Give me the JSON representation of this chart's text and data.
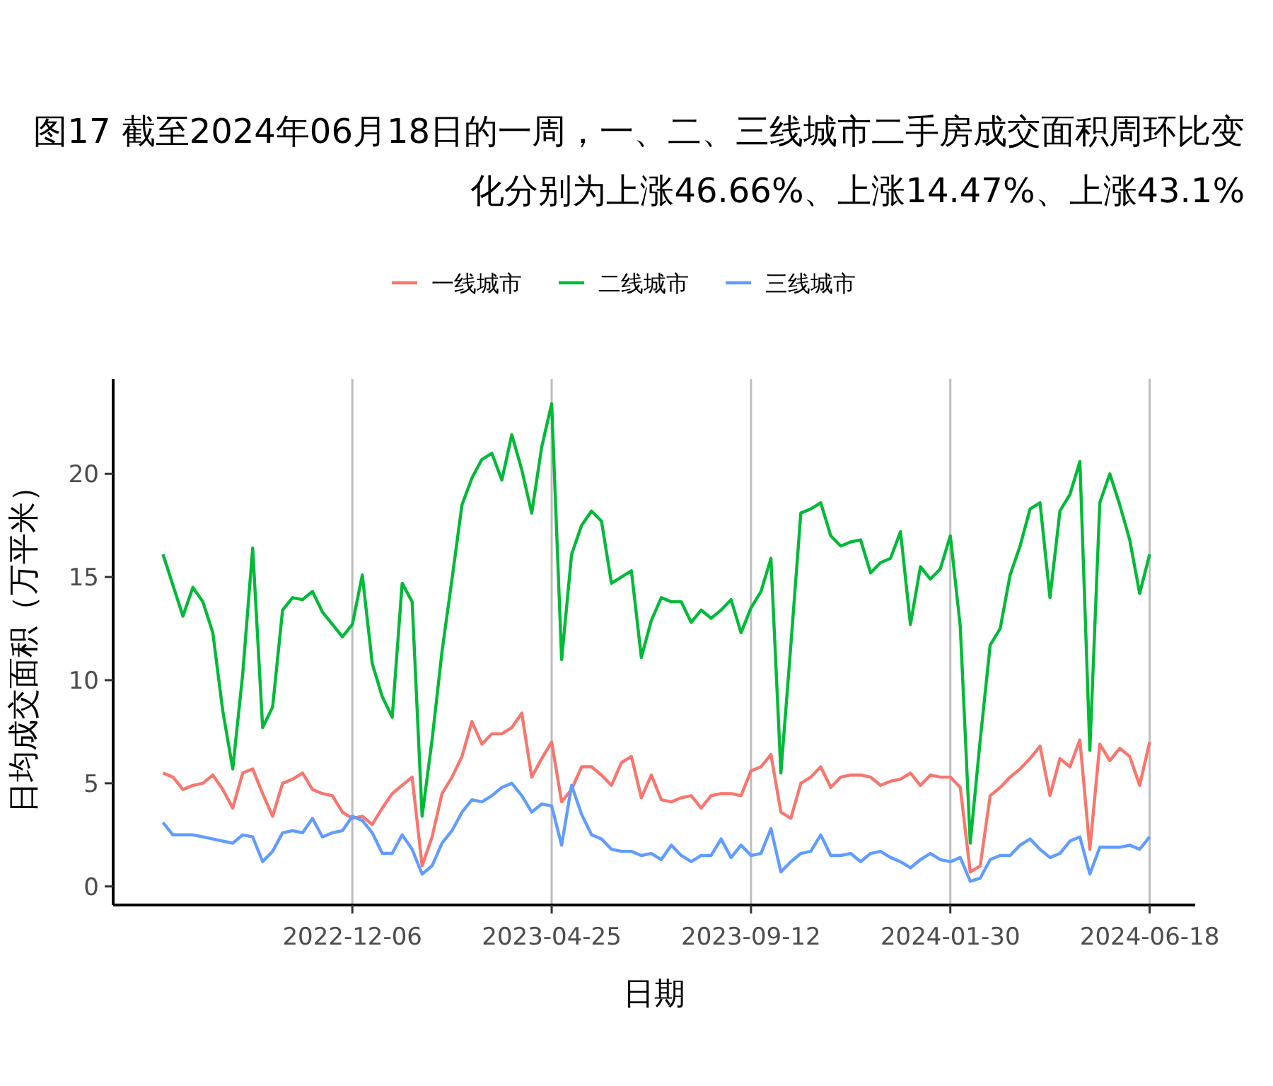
{
  "chart_data": {
    "type": "line",
    "title": "图17  截至2024年06月18日的一周，一、二、三线城市二手房成交面积周环比变化分别为上涨46.66%、上涨14.47%、上涨43.1%",
    "xlabel": "日期",
    "ylabel": "日均成交面积（万平米）",
    "legend": "top",
    "grid": "x",
    "xlim": [
      "2022-06-21",
      "2024-07-20"
    ],
    "xticks": [
      "2022-12-06",
      "2023-04-25",
      "2023-09-12",
      "2024-01-30",
      "2024-06-18"
    ],
    "ylim": [
      -0.9,
      24.6
    ],
    "yticks": [
      0,
      5,
      10,
      15,
      20
    ],
    "x": [
      "2022-07-26",
      "2022-08-02",
      "2022-08-09",
      "2022-08-16",
      "2022-08-23",
      "2022-08-30",
      "2022-09-06",
      "2022-09-13",
      "2022-09-20",
      "2022-09-27",
      "2022-10-04",
      "2022-10-11",
      "2022-10-18",
      "2022-10-25",
      "2022-11-01",
      "2022-11-08",
      "2022-11-15",
      "2022-11-22",
      "2022-11-29",
      "2022-12-06",
      "2022-12-13",
      "2022-12-20",
      "2022-12-27",
      "2023-01-03",
      "2023-01-10",
      "2023-01-17",
      "2023-01-24",
      "2023-01-31",
      "2023-02-07",
      "2023-02-14",
      "2023-02-21",
      "2023-02-28",
      "2023-03-07",
      "2023-03-14",
      "2023-03-21",
      "2023-03-28",
      "2023-04-04",
      "2023-04-11",
      "2023-04-18",
      "2023-04-25",
      "2023-05-02",
      "2023-05-09",
      "2023-05-16",
      "2023-05-23",
      "2023-05-30",
      "2023-06-06",
      "2023-06-13",
      "2023-06-20",
      "2023-06-27",
      "2023-07-04",
      "2023-07-11",
      "2023-07-18",
      "2023-07-25",
      "2023-08-01",
      "2023-08-08",
      "2023-08-15",
      "2023-08-22",
      "2023-08-29",
      "2023-09-05",
      "2023-09-12",
      "2023-09-19",
      "2023-09-26",
      "2023-10-03",
      "2023-10-10",
      "2023-10-17",
      "2023-10-24",
      "2023-10-31",
      "2023-11-07",
      "2023-11-14",
      "2023-11-21",
      "2023-11-28",
      "2023-12-05",
      "2023-12-12",
      "2023-12-19",
      "2023-12-26",
      "2024-01-02",
      "2024-01-09",
      "2024-01-16",
      "2024-01-23",
      "2024-01-30",
      "2024-02-06",
      "2024-02-13",
      "2024-02-20",
      "2024-02-27",
      "2024-03-05",
      "2024-03-12",
      "2024-03-19",
      "2024-03-26",
      "2024-04-02",
      "2024-04-09",
      "2024-04-16",
      "2024-04-23",
      "2024-04-30",
      "2024-05-07",
      "2024-05-14",
      "2024-05-21",
      "2024-05-28",
      "2024-06-04",
      "2024-06-11",
      "2024-06-18"
    ],
    "series": [
      {
        "name": "一线城市",
        "color": "#f8766d",
        "values": [
          5.5,
          5.3,
          4.7,
          4.9,
          5.0,
          5.4,
          4.7,
          3.8,
          5.5,
          5.7,
          4.5,
          3.4,
          5.0,
          5.2,
          5.5,
          4.7,
          4.5,
          4.4,
          3.6,
          3.3,
          3.4,
          3.0,
          3.8,
          4.5,
          4.9,
          5.3,
          1.0,
          2.4,
          4.5,
          5.3,
          6.3,
          8.0,
          6.9,
          7.4,
          7.4,
          7.7,
          8.4,
          5.3,
          6.2,
          7.0,
          4.1,
          4.7,
          5.8,
          5.8,
          5.4,
          4.9,
          6.0,
          6.3,
          4.3,
          5.4,
          4.2,
          4.1,
          4.3,
          4.4,
          3.8,
          4.4,
          4.5,
          4.5,
          4.4,
          5.6,
          5.8,
          6.4,
          3.6,
          3.3,
          5.0,
          5.3,
          5.8,
          4.8,
          5.3,
          5.4,
          5.4,
          5.3,
          4.9,
          5.1,
          5.2,
          5.5,
          4.9,
          5.4,
          5.3,
          5.3,
          4.8,
          0.7,
          1.0,
          4.4,
          4.8,
          5.3,
          5.7,
          6.2,
          6.8,
          4.4,
          6.2,
          5.8,
          7.1,
          1.8,
          6.9,
          6.1,
          6.7,
          6.3,
          4.9,
          7.0
        ]
      },
      {
        "name": "二线城市",
        "color": "#00ba38",
        "values": [
          16.1,
          14.6,
          13.1,
          14.5,
          13.8,
          12.3,
          8.5,
          5.7,
          10.3,
          16.4,
          7.7,
          8.7,
          13.4,
          14.0,
          13.9,
          14.3,
          13.3,
          12.7,
          12.1,
          12.7,
          15.1,
          10.8,
          9.2,
          8.2,
          14.7,
          13.8,
          3.4,
          7.1,
          11.4,
          14.9,
          18.5,
          19.8,
          20.7,
          21.0,
          19.7,
          21.9,
          20.2,
          18.1,
          21.3,
          23.4,
          11.0,
          16.1,
          17.5,
          18.2,
          17.7,
          14.7,
          15.0,
          15.3,
          11.1,
          12.9,
          14.0,
          13.8,
          13.8,
          12.8,
          13.4,
          13.0,
          13.4,
          13.9,
          12.3,
          13.5,
          14.3,
          15.9,
          5.5,
          11.7,
          18.1,
          18.3,
          18.6,
          17.0,
          16.5,
          16.7,
          16.8,
          15.2,
          15.7,
          15.9,
          17.2,
          12.7,
          15.5,
          14.9,
          15.4,
          17.0,
          12.6,
          2.1,
          7.1,
          11.7,
          12.5,
          15.1,
          16.5,
          18.3,
          18.6,
          14.0,
          18.2,
          19.0,
          20.6,
          6.6,
          18.6,
          20.0,
          18.5,
          16.8,
          14.2,
          16.1
        ]
      },
      {
        "name": "三线城市",
        "color": "#619cff",
        "values": [
          3.1,
          2.5,
          2.5,
          2.5,
          2.4,
          2.3,
          2.2,
          2.1,
          2.5,
          2.4,
          1.2,
          1.7,
          2.6,
          2.7,
          2.6,
          3.3,
          2.4,
          2.6,
          2.7,
          3.4,
          3.2,
          2.6,
          1.6,
          1.6,
          2.5,
          1.8,
          0.6,
          1.0,
          2.1,
          2.7,
          3.6,
          4.2,
          4.1,
          4.4,
          4.8,
          5.0,
          4.4,
          3.6,
          4.0,
          3.9,
          2.0,
          4.9,
          3.5,
          2.5,
          2.3,
          1.8,
          1.7,
          1.7,
          1.5,
          1.6,
          1.3,
          2.0,
          1.5,
          1.2,
          1.5,
          1.5,
          2.3,
          1.4,
          2.0,
          1.5,
          1.6,
          2.8,
          0.7,
          1.2,
          1.6,
          1.7,
          2.5,
          1.5,
          1.5,
          1.6,
          1.2,
          1.6,
          1.7,
          1.4,
          1.2,
          0.9,
          1.3,
          1.6,
          1.3,
          1.2,
          1.4,
          0.25,
          0.4,
          1.3,
          1.5,
          1.5,
          2.0,
          2.3,
          1.8,
          1.4,
          1.6,
          2.2,
          2.4,
          0.6,
          1.9,
          1.9,
          1.9,
          2.0,
          1.8,
          2.4
        ]
      }
    ]
  }
}
